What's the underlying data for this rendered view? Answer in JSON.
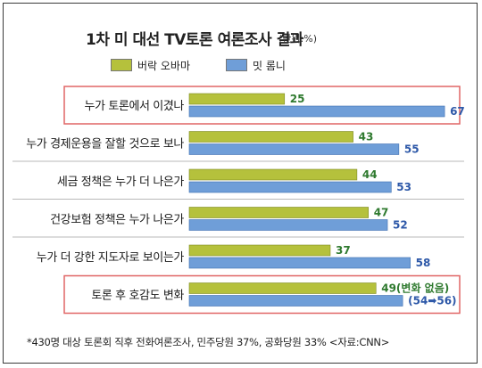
{
  "title": "1차 미 대선 TV토론 여론조사 결과",
  "title_unit": "(단위:%)",
  "footnote": "*430명 대상 토론회 직후 전화여론조사, 민주당원 37%, 공화당원 33% <자료:CNN>",
  "colors": {
    "obama": "#b5c13c",
    "romney": "#6f9ed8",
    "obama_label": "#2f7a2f",
    "romney_label": "#2d58a8",
    "highlight_box": "#e06666",
    "separator": "#b8b8b8"
  },
  "chart_data": {
    "type": "bar",
    "orientation": "horizontal",
    "title": "1차 미 대선 TV토론 여론조사 결과",
    "unit": "(단위:%)",
    "categories": [
      "누가 토론에서 이겼나",
      "누가 경제운용을 잘할 것으로 보나",
      "세금 정책은 누가 더 나은가",
      "건강보험 정책은 누가 나은가",
      "누가 더 강한 지도자로 보이는가",
      "토론 후 호감도 변화"
    ],
    "series": [
      {
        "name": "버락 오바마",
        "values": [
          25,
          43,
          44,
          47,
          37,
          49
        ],
        "value_labels": [
          "25",
          "43",
          "44",
          "47",
          "37",
          "49(변화 없음)"
        ]
      },
      {
        "name": "밋 롬니",
        "values": [
          67,
          55,
          53,
          52,
          58,
          56
        ],
        "value_labels": [
          "67",
          "55",
          "53",
          "52",
          "58",
          "(54➡56)"
        ]
      }
    ],
    "highlighted_categories": [
      "누가 토론에서 이겼나",
      "토론 후 호감도 변화"
    ],
    "legend_position": "top-left",
    "grid": false
  }
}
